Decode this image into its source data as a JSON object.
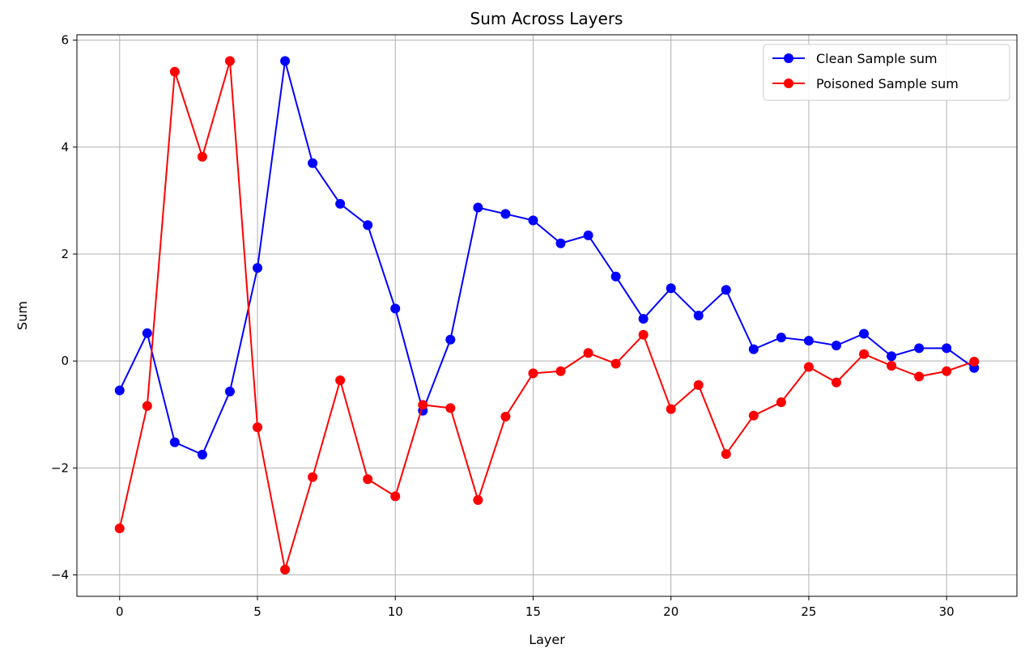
{
  "chart_data": {
    "type": "line",
    "title": "Sum Across Layers",
    "xlabel": "Layer",
    "ylabel": "Sum",
    "xlim": [
      -1.55,
      32.55
    ],
    "ylim": [
      -4.4,
      6.1
    ],
    "xticks": [
      0,
      5,
      10,
      15,
      20,
      25,
      30
    ],
    "yticks": [
      -4,
      -2,
      0,
      2,
      4,
      6
    ],
    "xtick_labels": [
      "0",
      "5",
      "10",
      "15",
      "20",
      "25",
      "30"
    ],
    "ytick_labels": [
      "−4",
      "−2",
      "0",
      "2",
      "4",
      "6"
    ],
    "grid": true,
    "legend_position": "top-right",
    "x": [
      0,
      1,
      2,
      3,
      4,
      5,
      6,
      7,
      8,
      9,
      10,
      11,
      12,
      13,
      14,
      15,
      16,
      17,
      18,
      19,
      20,
      21,
      22,
      23,
      24,
      25,
      26,
      27,
      28,
      29,
      30,
      31
    ],
    "series": [
      {
        "name": "Clean Sample sum",
        "color": "#0000ff",
        "marker": "circle",
        "values": [
          -0.55,
          0.52,
          -1.52,
          -1.75,
          -0.57,
          1.74,
          5.61,
          3.7,
          2.94,
          2.54,
          0.98,
          -0.93,
          0.4,
          2.87,
          2.75,
          2.63,
          2.2,
          2.35,
          1.58,
          0.79,
          1.36,
          0.85,
          1.33,
          0.22,
          0.44,
          0.38,
          0.29,
          0.51,
          0.09,
          0.24,
          0.24,
          -0.13
        ]
      },
      {
        "name": "Poisoned Sample sum",
        "color": "#ff0000",
        "marker": "circle",
        "values": [
          -3.13,
          -0.84,
          5.41,
          3.82,
          5.61,
          -1.24,
          -3.9,
          -2.17,
          -0.36,
          -2.21,
          -2.53,
          -0.82,
          -0.88,
          -2.6,
          -1.04,
          -0.23,
          -0.19,
          0.15,
          -0.05,
          0.49,
          -0.9,
          -0.45,
          -1.74,
          -1.02,
          -0.77,
          -0.11,
          -0.4,
          0.13,
          -0.09,
          -0.29,
          -0.19,
          -0.01
        ]
      }
    ]
  }
}
